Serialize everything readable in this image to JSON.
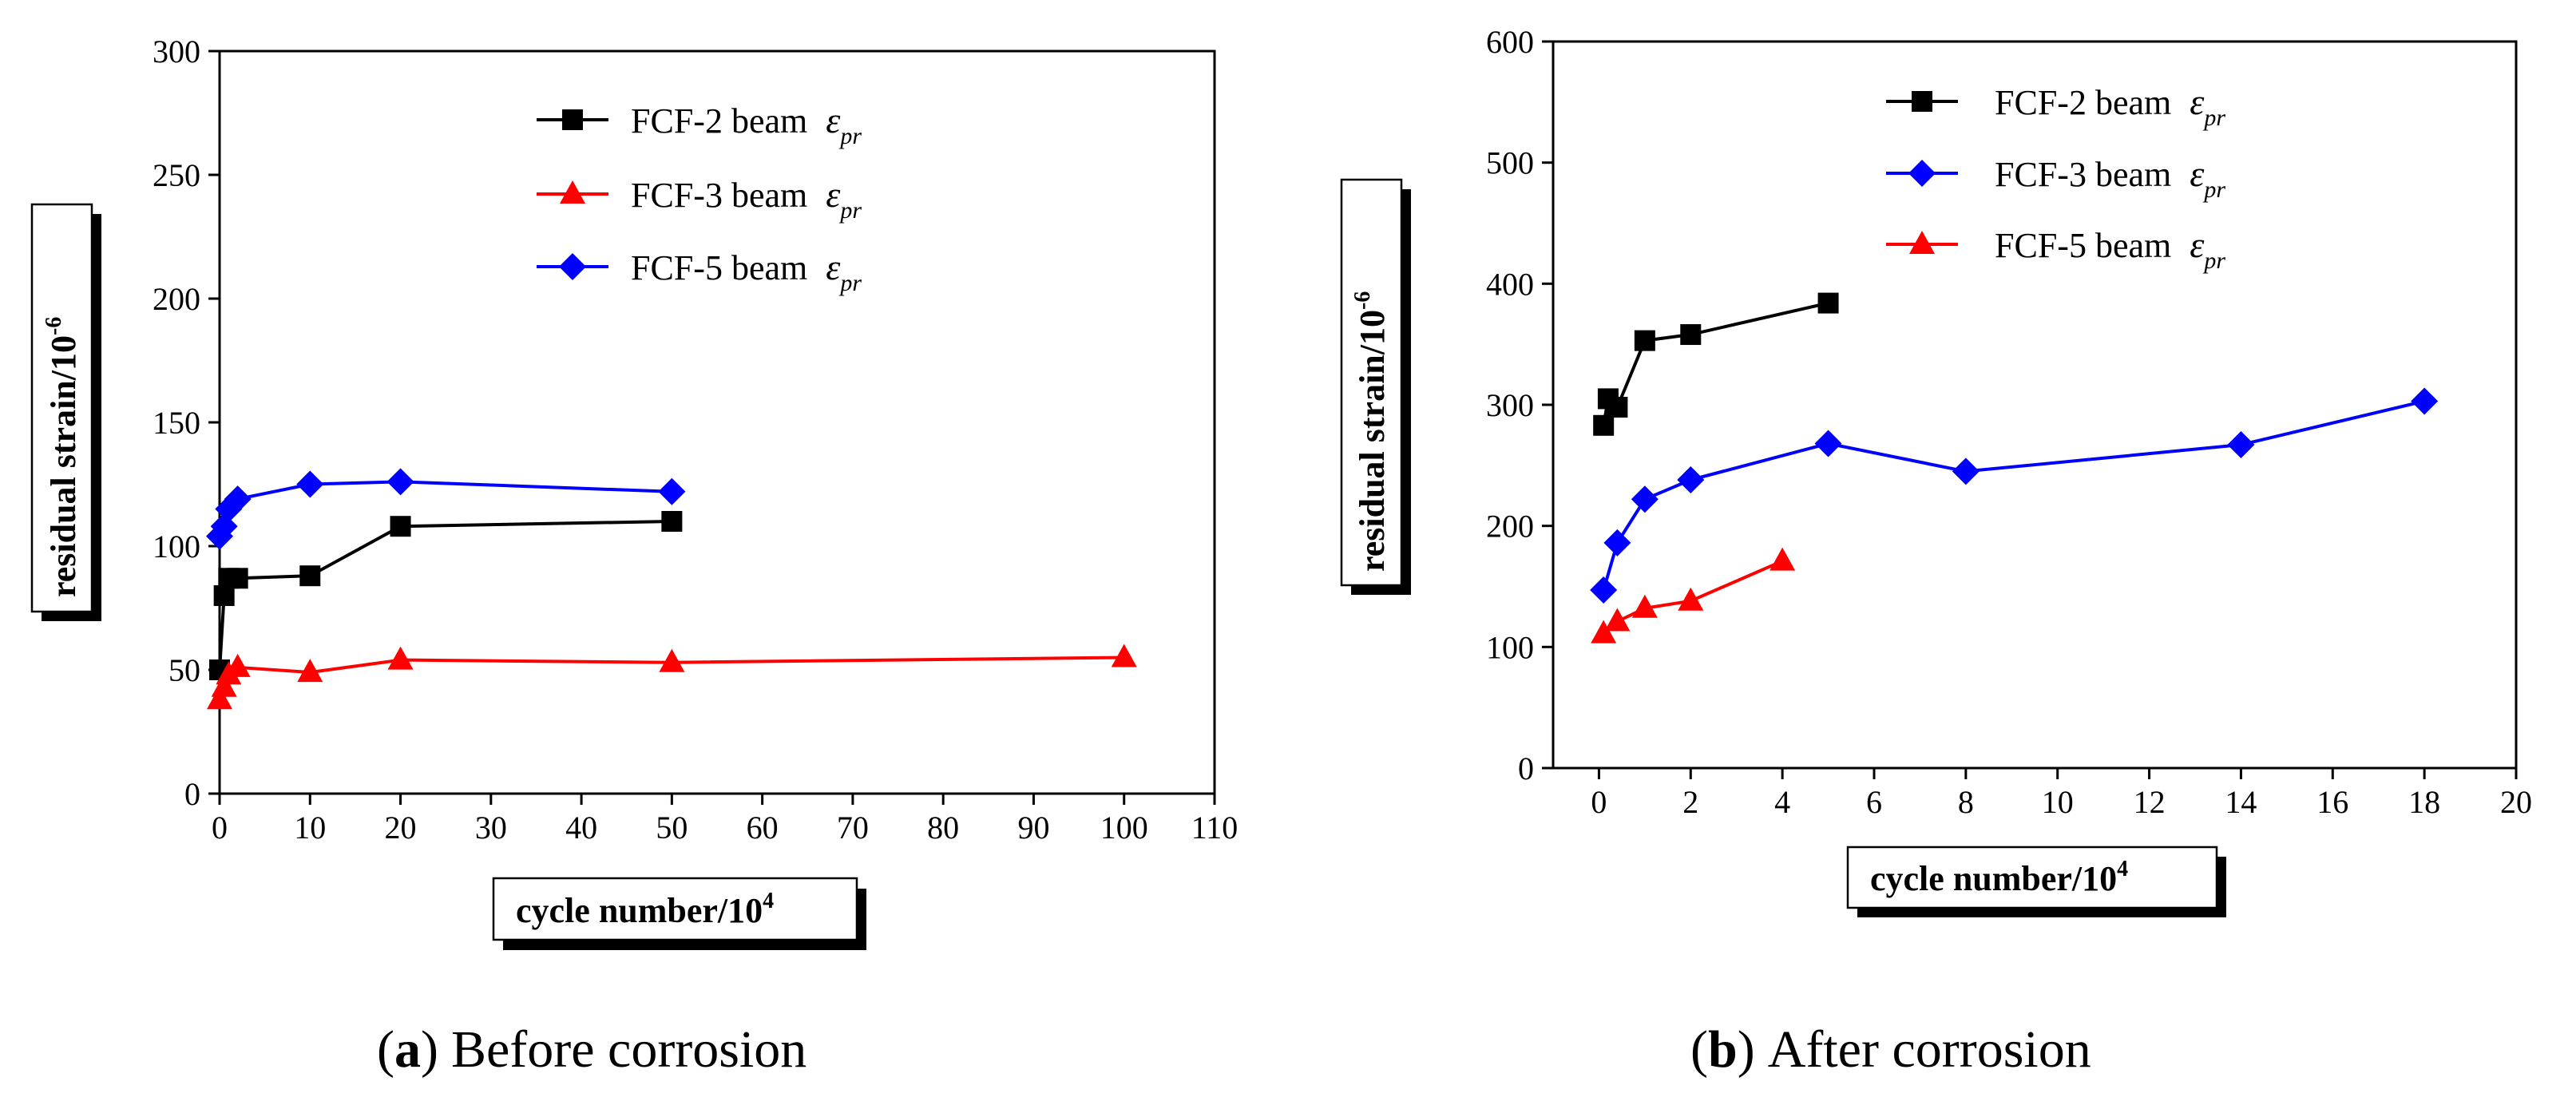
{
  "chart_data": [
    {
      "type": "line",
      "panel": "a",
      "caption_label": "a",
      "caption_text": "Before corrosion",
      "xlabel_main": "cycle number/10",
      "xlabel_sup": "4",
      "ylabel_main": "residual strain/10",
      "ylabel_sup": "-6",
      "xlim": [
        0,
        110
      ],
      "ylim": [
        0,
        300
      ],
      "xticks": [
        0,
        10,
        20,
        30,
        40,
        50,
        60,
        70,
        80,
        90,
        100,
        110
      ],
      "yticks": [
        0,
        50,
        100,
        150,
        200,
        250,
        300
      ],
      "series": [
        {
          "name": "FCF-2 beam",
          "subscript": "pr",
          "marker": "square",
          "color": "#000000",
          "x": [
            0,
            0.5,
            1,
            2,
            10,
            20,
            50
          ],
          "y": [
            50,
            80,
            87,
            87,
            88,
            108,
            110
          ]
        },
        {
          "name": "FCF-3 beam",
          "subscript": "pr",
          "marker": "triangle",
          "color": "#ff0000",
          "x": [
            0,
            0.5,
            1,
            2,
            10,
            20,
            50,
            100
          ],
          "y": [
            38,
            43,
            48,
            51,
            49,
            54,
            53,
            55
          ]
        },
        {
          "name": "FCF-5 beam",
          "subscript": "pr",
          "marker": "diamond",
          "color": "#0000ff",
          "x": [
            0,
            0.5,
            1,
            2,
            10,
            20,
            50
          ],
          "y": [
            104,
            108,
            115,
            119,
            125,
            126,
            122
          ]
        }
      ]
    },
    {
      "type": "line",
      "panel": "b",
      "caption_label": "b",
      "caption_text": "After corrosion",
      "xlabel_main": "cycle number/10",
      "xlabel_sup": "4",
      "ylabel_main": "residual strain/10",
      "ylabel_sup": "-6",
      "xlim": [
        -1,
        20
      ],
      "ylim": [
        0,
        600
      ],
      "xticks": [
        0,
        2,
        4,
        6,
        8,
        10,
        12,
        14,
        16,
        18,
        20
      ],
      "yticks": [
        0,
        100,
        200,
        300,
        400,
        500,
        600
      ],
      "series": [
        {
          "name": "FCF-2 beam",
          "subscript": "pr",
          "marker": "square",
          "color": "#000000",
          "x": [
            0.1,
            0.2,
            0.4,
            1,
            2,
            5
          ],
          "y": [
            283,
            305,
            298,
            353,
            358,
            384
          ]
        },
        {
          "name": "FCF-3 beam",
          "subscript": "pr",
          "marker": "diamond",
          "color": "#0000ff",
          "x": [
            0.1,
            0.4,
            1,
            2,
            5,
            8,
            14,
            18
          ],
          "y": [
            147,
            186,
            222,
            238,
            268,
            245,
            267,
            303
          ]
        },
        {
          "name": "FCF-5 beam",
          "subscript": "pr",
          "marker": "triangle",
          "color": "#ff0000",
          "x": [
            0.1,
            0.4,
            1,
            2,
            4
          ],
          "y": [
            111,
            121,
            132,
            138,
            171
          ]
        }
      ]
    }
  ]
}
